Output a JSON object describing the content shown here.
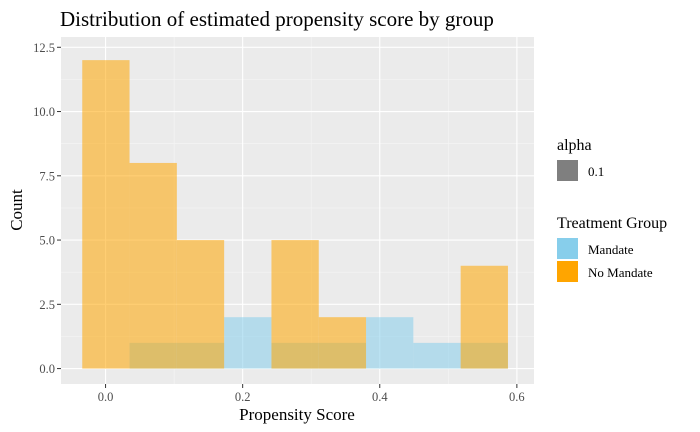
{
  "chart_data": {
    "type": "bar",
    "title": "Distribution of estimated propensity score by group",
    "xlabel": "Propensity Score",
    "ylabel": "Count",
    "xlim": [
      -0.065,
      0.625
    ],
    "ylim": [
      -0.6,
      12.9
    ],
    "x_ticks": [
      0.0,
      0.2,
      0.4,
      0.6
    ],
    "x_tick_labels": [
      "0.0",
      "0.2",
      "0.4",
      "0.6"
    ],
    "y_ticks": [
      0.0,
      2.5,
      5.0,
      7.5,
      10.0,
      12.5
    ],
    "y_tick_labels": [
      "0.0",
      "2.5",
      "5.0",
      "7.5",
      "10.0",
      "12.5"
    ],
    "grid": true,
    "bin_edges": [
      -0.034,
      0.035,
      0.104,
      0.173,
      0.242,
      0.311,
      0.38,
      0.449,
      0.518,
      0.587
    ],
    "series": [
      {
        "name": "Mandate",
        "color": "#87CEEB",
        "values": [
          0,
          1,
          1,
          2,
          1,
          1,
          2,
          1,
          1
        ]
      },
      {
        "name": "No Mandate",
        "color": "#FFA500",
        "values": [
          12,
          8,
          5,
          0,
          5,
          2,
          0,
          0,
          4
        ]
      }
    ],
    "legend": {
      "position": "right",
      "alpha_title": "alpha",
      "alpha_label": "0.1",
      "group_title": "Treatment Group"
    }
  }
}
